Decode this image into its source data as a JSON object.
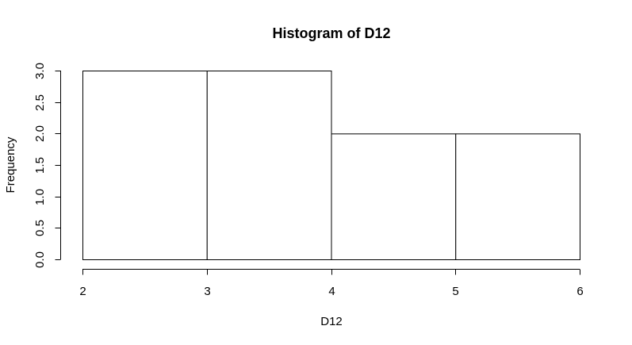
{
  "chart_data": {
    "type": "bar",
    "title": "Histogram of D12",
    "xlabel": "D12",
    "ylabel": "Frequency",
    "bins": [
      {
        "start": 2,
        "end": 3,
        "count": 3
      },
      {
        "start": 3,
        "end": 4,
        "count": 3
      },
      {
        "start": 4,
        "end": 5,
        "count": 2
      },
      {
        "start": 5,
        "end": 6,
        "count": 2
      }
    ],
    "xlim": [
      2,
      6
    ],
    "ylim": [
      0,
      3
    ],
    "x_ticks": [
      "2",
      "3",
      "4",
      "5",
      "6"
    ],
    "y_ticks": [
      "0.0",
      "0.5",
      "1.0",
      "1.5",
      "2.0",
      "2.5",
      "3.0"
    ],
    "grid": false,
    "colors": {
      "bar_fill": "#ffffff",
      "bar_stroke": "#000000"
    }
  }
}
